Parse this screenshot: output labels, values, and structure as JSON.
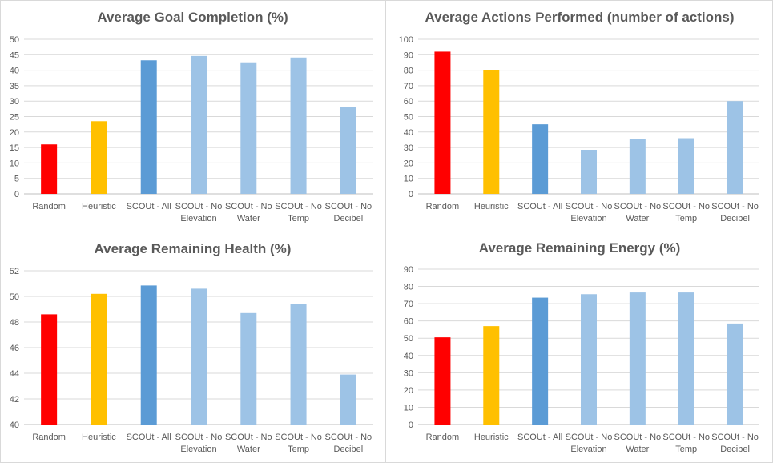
{
  "chart_data": [
    {
      "type": "bar",
      "title": "Average Goal Completion (%)",
      "categories": [
        [
          "Random"
        ],
        [
          "Heuristic"
        ],
        [
          "SCOUt - All"
        ],
        [
          "SCOUt - No",
          "Elevation"
        ],
        [
          "SCOUt - No",
          "Water"
        ],
        [
          "SCOUt - No",
          "Temp"
        ],
        [
          "SCOUt - No",
          "Decibel"
        ]
      ],
      "values": [
        16,
        23.5,
        43.2,
        44.6,
        42.3,
        44.1,
        28.2
      ],
      "colors": [
        "#ff0000",
        "#ffc000",
        "#5b9bd5",
        "#9dc3e6",
        "#9dc3e6",
        "#9dc3e6",
        "#9dc3e6"
      ],
      "ylim": [
        0,
        50
      ],
      "yticks": [
        "0",
        "5",
        "10",
        "15",
        "20",
        "25",
        "30",
        "35",
        "40",
        "45",
        "50"
      ],
      "grid": true
    },
    {
      "type": "bar",
      "title": "Average Actions Performed (number of actions)",
      "categories": [
        [
          "Random"
        ],
        [
          "Heuristic"
        ],
        [
          "SCOUt - All"
        ],
        [
          "SCOUt - No",
          "Elevation"
        ],
        [
          "SCOUt - No",
          "Water"
        ],
        [
          "SCOUt - No",
          "Temp"
        ],
        [
          "SCOUt - No",
          "Decibel"
        ]
      ],
      "values": [
        92,
        80,
        45,
        28.5,
        35.5,
        36,
        60
      ],
      "colors": [
        "#ff0000",
        "#ffc000",
        "#5b9bd5",
        "#9dc3e6",
        "#9dc3e6",
        "#9dc3e6",
        "#9dc3e6"
      ],
      "ylim": [
        0,
        100
      ],
      "yticks": [
        "0",
        "10",
        "20",
        "30",
        "40",
        "50",
        "60",
        "70",
        "80",
        "90",
        "100"
      ],
      "grid": true
    },
    {
      "type": "bar",
      "title": "Average Remaining Health (%)",
      "categories": [
        [
          "Random"
        ],
        [
          "Heuristic"
        ],
        [
          "SCOUt - All"
        ],
        [
          "SCOUt - No",
          "Elevation"
        ],
        [
          "SCOUt - No",
          "Water"
        ],
        [
          "SCOUt - No",
          "Temp"
        ],
        [
          "SCOUt - No",
          "Decibel"
        ]
      ],
      "values": [
        48.6,
        50.2,
        50.85,
        50.6,
        48.7,
        49.4,
        43.9
      ],
      "colors": [
        "#ff0000",
        "#ffc000",
        "#5b9bd5",
        "#9dc3e6",
        "#9dc3e6",
        "#9dc3e6",
        "#9dc3e6"
      ],
      "ylim": [
        40,
        52
      ],
      "yticks": [
        "40",
        "42",
        "44",
        "46",
        "48",
        "50",
        "52"
      ],
      "grid": true
    },
    {
      "type": "bar",
      "title": "Average Remaining Energy (%)",
      "categories": [
        [
          "Random"
        ],
        [
          "Heuristic"
        ],
        [
          "SCOUt - All"
        ],
        [
          "SCOUt - No",
          "Elevation"
        ],
        [
          "SCOUt - No",
          "Water"
        ],
        [
          "SCOUt - No",
          "Temp"
        ],
        [
          "SCOUt - No",
          "Decibel"
        ]
      ],
      "values": [
        50.5,
        57,
        73.5,
        75.5,
        76.5,
        76.5,
        58.5
      ],
      "colors": [
        "#ff0000",
        "#ffc000",
        "#5b9bd5",
        "#9dc3e6",
        "#9dc3e6",
        "#9dc3e6",
        "#9dc3e6"
      ],
      "ylim": [
        0,
        90
      ],
      "yticks": [
        "0",
        "10",
        "20",
        "30",
        "40",
        "50",
        "60",
        "70",
        "80",
        "90"
      ],
      "grid": true
    }
  ]
}
